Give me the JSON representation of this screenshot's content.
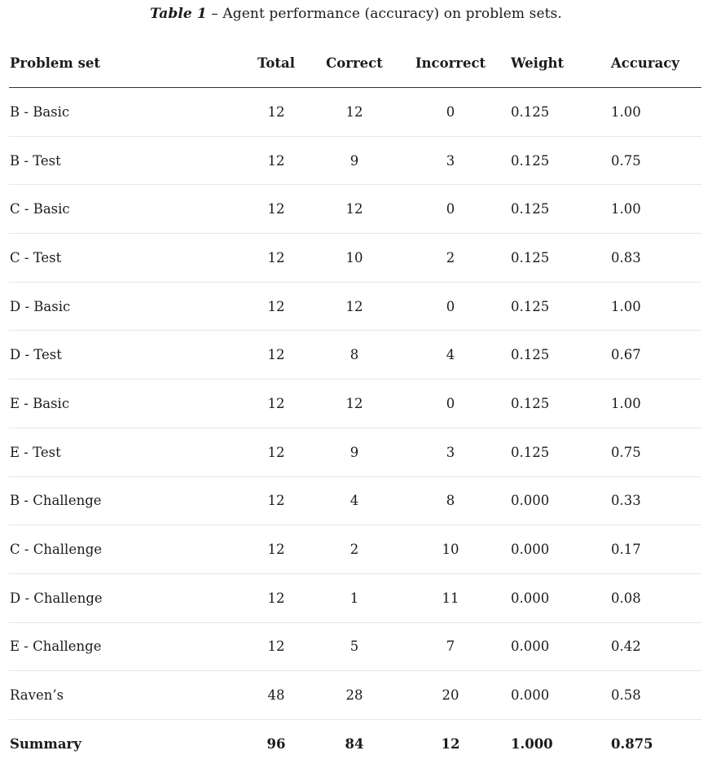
{
  "caption": {
    "label": "Table 1",
    "text": " – Agent performance (accuracy) on problem sets."
  },
  "table": {
    "headers": {
      "problem_set": "Problem set",
      "total": "Total",
      "correct": "Correct",
      "incorrect": "Incorrect",
      "weight": "Weight",
      "accuracy": "Accuracy"
    },
    "rows": [
      {
        "problem_set": "B - Basic",
        "total": "12",
        "correct": "12",
        "incorrect": "0",
        "weight": "0.125",
        "accuracy": "1.00"
      },
      {
        "problem_set": "B - Test",
        "total": "12",
        "correct": "9",
        "incorrect": "3",
        "weight": "0.125",
        "accuracy": "0.75"
      },
      {
        "problem_set": "C - Basic",
        "total": "12",
        "correct": "12",
        "incorrect": "0",
        "weight": "0.125",
        "accuracy": "1.00"
      },
      {
        "problem_set": "C - Test",
        "total": "12",
        "correct": "10",
        "incorrect": "2",
        "weight": "0.125",
        "accuracy": "0.83"
      },
      {
        "problem_set": "D - Basic",
        "total": "12",
        "correct": "12",
        "incorrect": "0",
        "weight": "0.125",
        "accuracy": "1.00"
      },
      {
        "problem_set": "D - Test",
        "total": "12",
        "correct": "8",
        "incorrect": "4",
        "weight": "0.125",
        "accuracy": "0.67"
      },
      {
        "problem_set": "E - Basic",
        "total": "12",
        "correct": "12",
        "incorrect": "0",
        "weight": "0.125",
        "accuracy": "1.00"
      },
      {
        "problem_set": "E - Test",
        "total": "12",
        "correct": "9",
        "incorrect": "3",
        "weight": "0.125",
        "accuracy": "0.75"
      },
      {
        "problem_set": "B - Challenge",
        "total": "12",
        "correct": "4",
        "incorrect": "8",
        "weight": "0.000",
        "accuracy": "0.33"
      },
      {
        "problem_set": "C - Challenge",
        "total": "12",
        "correct": "2",
        "incorrect": "10",
        "weight": "0.000",
        "accuracy": "0.17"
      },
      {
        "problem_set": "D - Challenge",
        "total": "12",
        "correct": "1",
        "incorrect": "11",
        "weight": "0.000",
        "accuracy": "0.08"
      },
      {
        "problem_set": "E - Challenge",
        "total": "12",
        "correct": "5",
        "incorrect": "7",
        "weight": "0.000",
        "accuracy": "0.42"
      },
      {
        "problem_set": "Raven’s",
        "total": "48",
        "correct": "28",
        "incorrect": "20",
        "weight": "0.000",
        "accuracy": "0.58"
      }
    ],
    "summary": {
      "problem_set": "Summary",
      "total": "96",
      "correct": "84",
      "incorrect": "12",
      "weight": "1.000",
      "accuracy": "0.875"
    }
  }
}
